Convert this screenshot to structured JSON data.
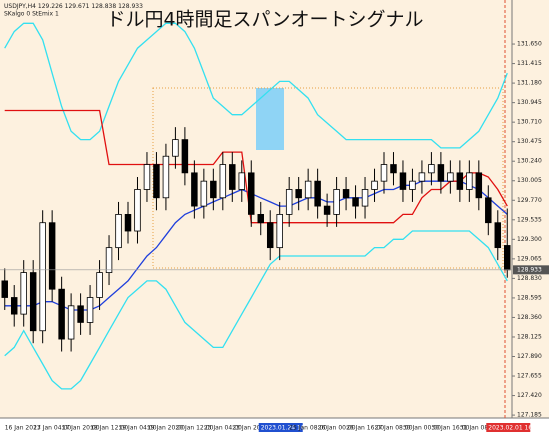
{
  "chart_data": {
    "type": "candlestick",
    "title": "ドル円4時間足スパンオートシグナル",
    "symbol": "USDJPY,H4",
    "indicator_text": "SKalgo 0 StEmix 1",
    "categories": [
      "16 Jan 2023",
      null,
      null,
      "17 Jan 04:00",
      null,
      null,
      "17 Jan 20:00",
      null,
      null,
      "18 Jan 12:00",
      null,
      null,
      "19 Jan 04:00",
      null,
      null,
      "19 Jan 20:00",
      null,
      null,
      "20 Jan 12:00",
      null,
      null,
      "23 Jan 04:00",
      null,
      null,
      "23 Jan 20:00",
      null,
      null,
      "2023.01.24 16:00",
      null,
      null,
      "25 Jan 08:00",
      null,
      null,
      "26 Jan 00:00",
      null,
      null,
      "26 Jan 16:00",
      null,
      null,
      "27 Jan 08:00",
      null,
      null,
      "30 Jan 00:00",
      null,
      null,
      "30 Jan 16:00",
      null,
      null,
      "31 Jan 08:00",
      null,
      null,
      "2023.02.01 16:00",
      null,
      null
    ],
    "open": [
      128.8,
      128.6,
      128.4,
      128.9,
      128.2,
      129.5,
      128.7,
      128.1,
      128.5,
      128.3,
      128.6,
      128.9,
      129.2,
      129.6,
      129.4,
      129.9,
      130.2,
      129.8,
      130.3,
      130.5,
      130.1,
      129.7,
      130.0,
      129.8,
      130.2,
      129.9,
      130.1,
      129.6,
      129.5,
      129.2,
      129.6,
      129.9,
      129.8,
      130.0,
      129.7,
      129.6,
      129.9,
      129.8,
      129.7,
      129.9,
      130.0,
      130.2,
      130.1,
      129.9,
      130.0,
      130.1,
      130.2,
      130.0,
      130.1,
      129.9,
      130.1,
      129.8,
      129.5,
      129.226
    ],
    "high": [
      128.95,
      128.75,
      129.05,
      129.05,
      129.65,
      129.65,
      128.85,
      128.65,
      128.65,
      128.75,
      129.05,
      129.35,
      129.75,
      129.75,
      130.05,
      130.35,
      130.35,
      130.45,
      130.65,
      130.65,
      130.25,
      130.15,
      130.15,
      130.35,
      130.35,
      130.25,
      130.25,
      129.75,
      129.65,
      129.75,
      130.05,
      130.05,
      130.15,
      130.15,
      129.85,
      130.05,
      130.05,
      129.95,
      130.05,
      130.15,
      130.35,
      130.35,
      130.25,
      130.15,
      130.25,
      130.35,
      130.35,
      130.25,
      130.25,
      130.25,
      130.25,
      129.95,
      129.65,
      129.671
    ],
    "low": [
      128.45,
      128.25,
      128.25,
      128.05,
      128.05,
      128.55,
      127.95,
      127.95,
      128.15,
      128.15,
      128.45,
      128.75,
      129.05,
      129.25,
      129.25,
      129.75,
      129.65,
      129.65,
      130.15,
      129.95,
      129.55,
      129.55,
      129.65,
      129.65,
      129.75,
      129.75,
      129.45,
      129.35,
      129.05,
      129.05,
      129.45,
      129.65,
      129.65,
      129.55,
      129.45,
      129.45,
      129.65,
      129.55,
      129.55,
      129.75,
      129.85,
      129.95,
      129.75,
      129.75,
      129.85,
      129.95,
      129.85,
      129.85,
      129.75,
      129.75,
      129.65,
      129.35,
      129.05,
      128.838
    ],
    "close": [
      128.6,
      128.4,
      128.9,
      128.2,
      129.5,
      128.7,
      128.1,
      128.5,
      128.3,
      128.6,
      128.9,
      129.2,
      129.6,
      129.4,
      129.9,
      130.2,
      129.8,
      130.3,
      130.5,
      130.1,
      129.7,
      130.0,
      129.8,
      130.2,
      129.9,
      130.1,
      129.6,
      129.5,
      129.2,
      129.6,
      129.9,
      129.8,
      130.0,
      129.7,
      129.6,
      129.9,
      129.8,
      129.7,
      129.9,
      130.0,
      130.2,
      130.1,
      129.9,
      130.0,
      130.1,
      130.2,
      130.0,
      130.1,
      129.9,
      130.1,
      129.8,
      129.5,
      129.2,
      128.933
    ],
    "series": [
      {
        "color": "#33e0f0",
        "values": [
          131.6,
          131.8,
          131.9,
          131.9,
          131.7,
          131.3,
          130.9,
          130.6,
          130.5,
          130.5,
          130.6,
          130.9,
          131.2,
          131.4,
          131.6,
          131.7,
          131.8,
          131.9,
          131.9,
          131.8,
          131.6,
          131.3,
          131.0,
          130.9,
          130.8,
          130.8,
          130.9,
          131.0,
          131.1,
          131.2,
          131.2,
          131.1,
          131.0,
          130.8,
          130.7,
          130.6,
          130.5,
          130.5,
          130.5,
          130.5,
          130.5,
          130.5,
          130.5,
          130.5,
          130.5,
          130.5,
          130.4,
          130.4,
          130.4,
          130.5,
          130.6,
          130.8,
          131.0,
          131.3
        ]
      },
      {
        "color": "#33e0f0",
        "values": [
          127.9,
          128.0,
          128.2,
          128.0,
          127.8,
          127.6,
          127.5,
          127.5,
          127.6,
          127.8,
          128.0,
          128.2,
          128.4,
          128.6,
          128.7,
          128.8,
          128.8,
          128.7,
          128.5,
          128.3,
          128.2,
          128.1,
          128.0,
          128.0,
          128.2,
          128.4,
          128.6,
          128.8,
          129.0,
          129.1,
          129.1,
          129.1,
          129.1,
          129.1,
          129.1,
          129.1,
          129.1,
          129.1,
          129.1,
          129.2,
          129.2,
          129.3,
          129.3,
          129.4,
          129.4,
          129.4,
          129.4,
          129.4,
          129.4,
          129.4,
          129.3,
          129.2,
          129.0,
          128.8
        ]
      },
      {
        "color": "#1f3fdc",
        "values": [
          128.5,
          128.5,
          128.5,
          128.5,
          128.55,
          128.55,
          128.5,
          128.45,
          128.45,
          128.45,
          128.5,
          128.6,
          128.7,
          128.8,
          128.95,
          129.1,
          129.2,
          129.35,
          129.5,
          129.6,
          129.65,
          129.7,
          129.75,
          129.8,
          129.85,
          129.9,
          129.85,
          129.8,
          129.75,
          129.7,
          129.7,
          129.75,
          129.8,
          129.8,
          129.75,
          129.75,
          129.8,
          129.8,
          129.8,
          129.85,
          129.9,
          129.9,
          129.95,
          129.95,
          130.0,
          130.0,
          130.0,
          130.0,
          130.0,
          129.95,
          129.9,
          129.8,
          129.7,
          129.6
        ]
      },
      {
        "color": "#e01010",
        "values": [
          130.85,
          130.85,
          130.85,
          130.85,
          130.85,
          130.85,
          130.85,
          130.85,
          130.85,
          130.85,
          130.85,
          130.2,
          130.2,
          130.2,
          130.2,
          130.2,
          130.2,
          130.2,
          130.2,
          130.2,
          130.2,
          130.2,
          130.2,
          130.35,
          130.35,
          130.35,
          129.5,
          129.5,
          129.5,
          129.5,
          129.5,
          129.5,
          129.5,
          129.5,
          129.5,
          129.5,
          129.5,
          129.5,
          129.5,
          129.5,
          129.5,
          129.5,
          129.6,
          129.6,
          129.8,
          129.9,
          129.9,
          130.0,
          130.0,
          130.1,
          130.1,
          130.05,
          129.9,
          129.7
        ]
      }
    ],
    "ylim": [
      127.15,
      132.18
    ],
    "yticks": [
      {
        "value": 131.65,
        "label": "131.650"
      },
      {
        "value": 131.415,
        "label": "131.415"
      },
      {
        "value": 131.18,
        "label": "131.180"
      },
      {
        "value": 130.945,
        "label": "130.945"
      },
      {
        "value": 130.71,
        "label": "130.710"
      },
      {
        "value": 130.475,
        "label": "130.475"
      },
      {
        "value": 130.24,
        "label": "130.240"
      },
      {
        "value": 130.005,
        "label": "130.005"
      },
      {
        "value": 129.77,
        "label": "129.770"
      },
      {
        "value": 129.535,
        "label": "129.535"
      },
      {
        "value": 129.3,
        "label": "129.300"
      },
      {
        "value": 129.065,
        "label": "129.065"
      },
      {
        "value": 128.83,
        "label": "128.830"
      },
      {
        "value": 128.595,
        "label": "128.595"
      },
      {
        "value": 128.36,
        "label": "128.360"
      },
      {
        "value": 128.125,
        "label": "128.125"
      },
      {
        "value": 127.89,
        "label": "127.890"
      },
      {
        "value": 127.655,
        "label": "127.655"
      },
      {
        "value": 127.42,
        "label": "127.420"
      },
      {
        "value": 127.185,
        "label": "127.185"
      }
    ]
  }
}
